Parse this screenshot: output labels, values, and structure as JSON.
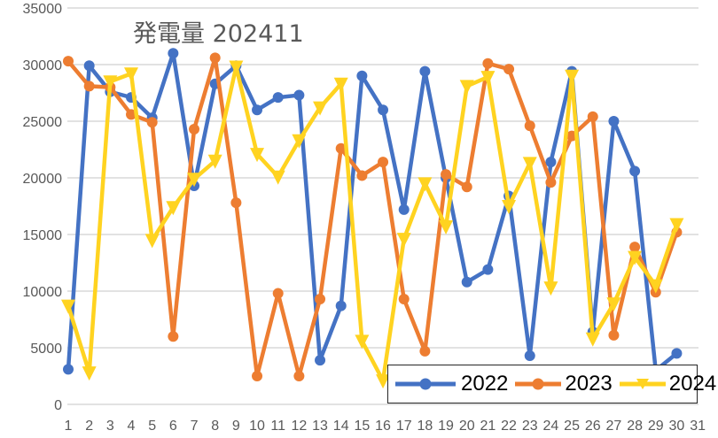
{
  "chart_data": {
    "type": "line",
    "title": "発電量 202411",
    "xlabel": "",
    "ylabel": "",
    "x": [
      1,
      2,
      3,
      4,
      5,
      6,
      7,
      8,
      9,
      10,
      11,
      12,
      13,
      14,
      15,
      16,
      17,
      18,
      19,
      20,
      21,
      22,
      23,
      24,
      25,
      26,
      27,
      28,
      29,
      30,
      31
    ],
    "ylim": [
      0,
      35000
    ],
    "yticks": [
      0,
      5000,
      10000,
      15000,
      20000,
      25000,
      30000,
      35000
    ],
    "ytick_labels": [
      "0",
      "5000",
      "10000",
      "15000",
      "20000",
      "25000",
      "30000",
      "35000"
    ],
    "xtick_labels": [
      "1",
      "2",
      "3",
      "4",
      "5",
      "6",
      "7",
      "8",
      "9",
      "10",
      "11",
      "12",
      "13",
      "14",
      "15",
      "16",
      "17",
      "18",
      "19",
      "20",
      "21",
      "22",
      "23",
      "24",
      "25",
      "26",
      "27",
      "28",
      "29",
      "30",
      "31"
    ],
    "grid": true,
    "legend_position": "bottom-right-inside",
    "series": [
      {
        "name": "2022",
        "color": "#4472C4",
        "marker": "circle",
        "values": [
          3100,
          29900,
          27600,
          27100,
          25300,
          31000,
          19300,
          28300,
          29900,
          26000,
          27100,
          27300,
          3900,
          8700,
          29000,
          26000,
          17200,
          29400,
          20000,
          10800,
          11900,
          18400,
          4300,
          21400,
          29400,
          6400,
          25000,
          20600,
          3000,
          4500,
          null
        ]
      },
      {
        "name": "2023",
        "color": "#ED7D31",
        "marker": "circle",
        "values": [
          30300,
          28100,
          28000,
          25600,
          24900,
          6000,
          24300,
          30600,
          17800,
          2500,
          9800,
          2500,
          9300,
          22600,
          20200,
          21400,
          9300,
          4700,
          20300,
          19200,
          30100,
          29600,
          24600,
          19600,
          23700,
          25400,
          6100,
          13900,
          9900,
          15200,
          null
        ]
      },
      {
        "name": "2024",
        "color": "#FFD320",
        "marker": "triangle-down",
        "values": [
          8700,
          2800,
          28500,
          29200,
          14500,
          17400,
          19900,
          21500,
          29800,
          22100,
          20100,
          23300,
          26200,
          28300,
          5600,
          2100,
          14600,
          19500,
          15700,
          28100,
          28900,
          17500,
          21300,
          10300,
          29000,
          5800,
          8900,
          13000,
          10500,
          15900,
          null
        ]
      }
    ]
  },
  "legend": {
    "items": [
      {
        "label": "2022"
      },
      {
        "label": "2023"
      },
      {
        "label": "2024"
      }
    ]
  }
}
